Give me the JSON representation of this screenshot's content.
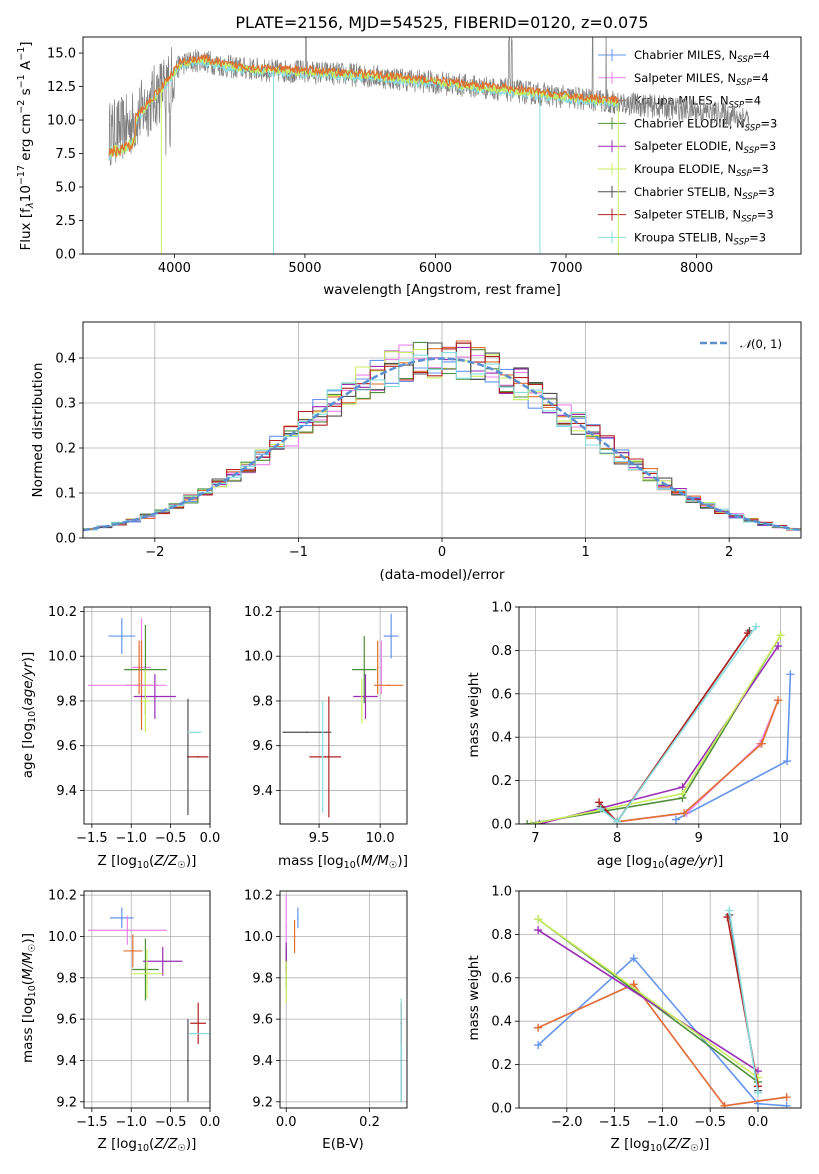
{
  "colors": {
    "series": [
      "#6495ed",
      "#ee82ee",
      "#e07030",
      "#4f8f3a",
      "#9a2db5",
      "#c8ee60",
      "#505050",
      "#b22222",
      "#88dde0"
    ],
    "data_line": "#808080",
    "grid": "#b0b0b0",
    "normal_curve": "#5b8fd0"
  },
  "chart_data": [
    {
      "id": "spectrum",
      "type": "line",
      "title": "PLATE=2156, MJD=54525, FIBERID=0120, z=0.075",
      "xlabel": "wavelength [Angstrom, rest frame]",
      "ylabel": "Flux [f$_\\lambda$10$^{-17}$ erg cm$^{-2}$ s$^{-1}$ A$^{-1}$]",
      "ylabel_parts": {
        "a": "Flux [f",
        "b": "λ",
        "c": "10",
        "d": "−17",
        "e": " erg cm",
        "f": "−2",
        "g": " s",
        "h": "−1",
        "i": " A",
        "j": "−1",
        "k": "]"
      },
      "xlim": [
        3300,
        8800
      ],
      "ylim": [
        0,
        16.2
      ],
      "xticks": [
        4000,
        5000,
        6000,
        7000,
        8000
      ],
      "xtick_labels": [
        "4000",
        "5000",
        "6000",
        "7000",
        "8000"
      ],
      "yticks": [
        0,
        2.5,
        5,
        7.5,
        10,
        12.5,
        15
      ],
      "ytick_labels": [
        "0.0",
        "2.5",
        "5.0",
        "7.5",
        "10.0",
        "12.5",
        "15.0"
      ],
      "grid": false,
      "legend_placement": "upper right",
      "continuum_points": [
        [
          3500,
          9.0
        ],
        [
          3650,
          9.5
        ],
        [
          3900,
          12.3
        ],
        [
          4050,
          14.2
        ],
        [
          4200,
          14.5
        ],
        [
          4400,
          14.0
        ],
        [
          4700,
          13.7
        ],
        [
          5000,
          13.6
        ],
        [
          5500,
          13.3
        ],
        [
          6000,
          12.8
        ],
        [
          6500,
          12.3
        ],
        [
          7000,
          11.7
        ],
        [
          7500,
          11.2
        ],
        [
          8000,
          10.7
        ],
        [
          8400,
          10.2
        ]
      ],
      "series": [
        {
          "name": "Chabrier MILES",
          "nssp": "4"
        },
        {
          "name": "Salpeter MILES",
          "nssp": "4"
        },
        {
          "name": "Kroupa MILES",
          "nssp": "4"
        },
        {
          "name": "Chabrier ELODIE",
          "nssp": "3"
        },
        {
          "name": "Salpeter ELODIE",
          "nssp": "3"
        },
        {
          "name": "Kroupa ELODIE",
          "nssp": "3"
        },
        {
          "name": "Chabrier STELIB",
          "nssp": "3"
        },
        {
          "name": "Salpeter STELIB",
          "nssp": "3"
        },
        {
          "name": "Kroupa STELIB",
          "nssp": "3"
        }
      ],
      "legend_nssp_label": "N",
      "legend_nssp_sub": "SSP"
    },
    {
      "id": "residuals",
      "type": "line",
      "xlabel": "(data-model)/error",
      "ylabel": "Normed distribution",
      "xlim": [
        -2.5,
        2.5
      ],
      "ylim": [
        0,
        0.48
      ],
      "xticks": [
        -2,
        -1,
        0,
        1,
        2
      ],
      "xtick_labels": [
        "−2",
        "−1",
        "0",
        "1",
        "2"
      ],
      "yticks": [
        0,
        0.1,
        0.2,
        0.3,
        0.4
      ],
      "ytick_labels": [
        "0.0",
        "0.1",
        "0.2",
        "0.3",
        "0.4"
      ],
      "grid": true,
      "legend": "$\\mathcal{N}(0,1)$",
      "legend_parts": {
        "a": "𝒩",
        "b": "(0, 1)"
      },
      "legend_placement": "upper right",
      "normal_mean": 0,
      "normal_sigma": 1,
      "bins": {
        "start": -2.5,
        "width": 0.1,
        "count": 50
      }
    },
    {
      "id": "age-vs-Z",
      "type": "scatter",
      "xlabel": "Z [log₁₀(Z/Z☉)]",
      "xlabel_parts": {
        "a": "Z [log",
        "b": "10",
        "c": "(",
        "d": "Z/Z",
        "e": "☉",
        "f": ")]"
      },
      "ylabel_parts": {
        "a": "age  [log",
        "b": "10",
        "c": "(",
        "d": "age/yr",
        "e": ")]"
      },
      "xlim": [
        -1.6,
        0.0
      ],
      "ylim": [
        9.25,
        10.22
      ],
      "xticks": [
        -1.5,
        -1.0,
        -0.5,
        0.0
      ],
      "xtick_labels": [
        "−1.5",
        "−1.0",
        "−0.5",
        "0.0"
      ],
      "yticks": [
        9.4,
        9.6,
        9.8,
        10.0,
        10.2
      ],
      "ytick_labels": [
        "9.4",
        "9.6",
        "9.8",
        "10.0",
        "10.2"
      ],
      "grid": true,
      "points": [
        {
          "s": 0,
          "x": -1.12,
          "y": 10.09,
          "xerr": 0.17,
          "yerr": 0.08
        },
        {
          "s": 1,
          "x": -0.87,
          "y": 9.95,
          "xerr": 0.12,
          "yerr": 0.22
        },
        {
          "s": 2,
          "x": -0.87,
          "y": 9.87,
          "xerr": 0.2,
          "yerr": 0.2
        },
        {
          "s": 3,
          "x": -0.82,
          "y": 9.94,
          "xerr": 0.27,
          "yerr": 0.2
        },
        {
          "s": 4,
          "x": -0.7,
          "y": 9.82,
          "xerr": 0.27,
          "yerr": 0.1
        },
        {
          "s": 5,
          "x": -0.82,
          "y": 9.8,
          "xerr": 0.05,
          "yerr": 0.14
        },
        {
          "s": 6,
          "x": -0.28,
          "y": 9.55,
          "xerr": 0.01,
          "yerr": 0.26
        },
        {
          "s": 7,
          "x": -0.15,
          "y": 9.55,
          "xerr": 0.13,
          "yerr": 0.0
        },
        {
          "s": 8,
          "x": -0.2,
          "y": 9.66,
          "xerr": 0.09,
          "yerr": 0.0
        },
        {
          "s": 1,
          "x": -1.05,
          "y": 9.87,
          "xerr": 0.5,
          "yerr": 0.0
        },
        {
          "s": 2,
          "x": -0.9,
          "y": 9.95,
          "xerr": 0.0,
          "yerr": 0.12
        }
      ]
    },
    {
      "id": "age-vs-mass",
      "type": "scatter",
      "xlabel_parts": {
        "a": "mass [log",
        "b": "10",
        "c": "(",
        "d": "M/M",
        "e": "☉",
        "f": ")]"
      },
      "xlim": [
        9.18,
        10.22
      ],
      "ylim": [
        9.25,
        10.22
      ],
      "xticks": [
        9.5,
        10.0
      ],
      "xtick_labels": [
        "9.5",
        "10.0"
      ],
      "yticks": [
        9.4,
        9.6,
        9.8,
        10.0,
        10.2
      ],
      "ytick_labels": [
        "9.4",
        "9.6",
        "9.8",
        "10.0",
        "10.2"
      ],
      "grid": true,
      "points": [
        {
          "s": 0,
          "x": 10.09,
          "y": 10.09,
          "xerr": 0.06,
          "yerr": 0.1
        },
        {
          "s": 1,
          "x": 10.01,
          "y": 9.95,
          "xerr": 0.0,
          "yerr": 0.12
        },
        {
          "s": 2,
          "x": 9.98,
          "y": 9.95,
          "xerr": 0.0,
          "yerr": 0.12
        },
        {
          "s": 2,
          "x": 10.07,
          "y": 9.87,
          "xerr": 0.12,
          "yerr": 0.0
        },
        {
          "s": 3,
          "x": 9.87,
          "y": 9.94,
          "xerr": 0.1,
          "yerr": 0.15
        },
        {
          "s": 4,
          "x": 9.88,
          "y": 9.82,
          "xerr": 0.1,
          "yerr": 0.1
        },
        {
          "s": 5,
          "x": 9.85,
          "y": 9.8,
          "xerr": 0.0,
          "yerr": 0.1
        },
        {
          "s": 6,
          "x": 9.4,
          "y": 9.66,
          "xerr": 0.2,
          "yerr": 0.0
        },
        {
          "s": 7,
          "x": 9.55,
          "y": 9.55,
          "xerr": 0.13,
          "yerr": 0.0
        },
        {
          "s": 7,
          "x": 9.58,
          "y": 9.55,
          "xerr": 0.0,
          "yerr": 0.27
        },
        {
          "s": 8,
          "x": 9.53,
          "y": 9.55,
          "xerr": 0.0,
          "yerr": 0.25
        }
      ]
    },
    {
      "id": "mass-weight-vs-age",
      "type": "line",
      "xlabel_parts": {
        "a": "age  [log",
        "b": "10",
        "c": "(",
        "d": "age/yr",
        "e": ")]"
      },
      "ylabel": "mass weight",
      "xlim": [
        6.8,
        10.25
      ],
      "ylim": [
        0,
        1
      ],
      "xticks": [
        7,
        8,
        9,
        10
      ],
      "xtick_labels": [
        "7",
        "8",
        "9",
        "10"
      ],
      "yticks": [
        0,
        0.2,
        0.4,
        0.6,
        0.8,
        1.0
      ],
      "ytick_labels": [
        "0.0",
        "0.2",
        "0.4",
        "0.6",
        "0.8",
        "1.0"
      ],
      "grid": true,
      "lines": [
        {
          "s": 0,
          "x": [
            8.72,
            10.08,
            10.12
          ],
          "y": [
            0.02,
            0.29,
            0.69
          ]
        },
        {
          "s": 1,
          "x": [
            8.0,
            8.85,
            9.75,
            9.97
          ],
          "y": [
            0.01,
            0.05,
            0.37,
            0.57
          ]
        },
        {
          "s": 2,
          "x": [
            8.0,
            8.82,
            9.77,
            9.97
          ],
          "y": [
            0.01,
            0.05,
            0.37,
            0.57
          ]
        },
        {
          "s": 3,
          "x": [
            6.9,
            8.8,
            10.0
          ],
          "y": [
            0.0,
            0.12,
            0.87
          ]
        },
        {
          "s": 4,
          "x": [
            7.05,
            8.8,
            9.97
          ],
          "y": [
            0.0,
            0.17,
            0.82
          ]
        },
        {
          "s": 5,
          "x": [
            6.95,
            8.8,
            10.0
          ],
          "y": [
            0.0,
            0.14,
            0.87
          ]
        },
        {
          "s": 6,
          "x": [
            7.8,
            8.0,
            9.62
          ],
          "y": [
            0.08,
            0.01,
            0.89
          ]
        },
        {
          "s": 7,
          "x": [
            7.78,
            8.0,
            9.6
          ],
          "y": [
            0.1,
            0.01,
            0.88
          ]
        },
        {
          "s": 8,
          "x": [
            7.8,
            8.0,
            9.7
          ],
          "y": [
            0.07,
            0.01,
            0.91
          ]
        }
      ]
    },
    {
      "id": "mass-vs-Z",
      "type": "scatter",
      "xlabel_parts": {
        "a": "Z [log",
        "b": "10",
        "c": "(",
        "d": "Z/Z",
        "e": "☉",
        "f": ")]"
      },
      "ylabel_parts": {
        "a": "mass [log",
        "b": "10",
        "c": "(",
        "d": "M/M",
        "e": "☉",
        "f": ")]"
      },
      "xlim": [
        -1.6,
        0.0
      ],
      "ylim": [
        9.17,
        10.22
      ],
      "xticks": [
        -1.5,
        -1.0,
        -0.5,
        0.0
      ],
      "xtick_labels": [
        "−1.5",
        "−1.0",
        "−0.5",
        "0.0"
      ],
      "yticks": [
        9.2,
        9.4,
        9.6,
        9.8,
        10.0,
        10.2
      ],
      "ytick_labels": [
        "9.2",
        "9.4",
        "9.6",
        "9.8",
        "10.0",
        "10.2"
      ],
      "grid": true,
      "points": [
        {
          "s": 0,
          "x": -1.12,
          "y": 10.09,
          "xerr": 0.15,
          "yerr": 0.05
        },
        {
          "s": 1,
          "x": -1.05,
          "y": 10.03,
          "xerr": 0.5,
          "yerr": 0.07
        },
        {
          "s": 2,
          "x": -0.98,
          "y": 9.93,
          "xerr": 0.12,
          "yerr": 0.08
        },
        {
          "s": 3,
          "x": -0.82,
          "y": 9.84,
          "xerr": 0.17,
          "yerr": 0.15
        },
        {
          "s": 4,
          "x": -0.6,
          "y": 9.88,
          "xerr": 0.25,
          "yerr": 0.07
        },
        {
          "s": 5,
          "x": -0.8,
          "y": 9.82,
          "xerr": 0.2,
          "yerr": 0.12
        },
        {
          "s": 6,
          "x": -0.28,
          "y": 9.4,
          "xerr": 0.0,
          "yerr": 0.2
        },
        {
          "s": 7,
          "x": -0.15,
          "y": 9.58,
          "xerr": 0.1,
          "yerr": 0.1
        },
        {
          "s": 8,
          "x": -0.14,
          "y": 9.53,
          "xerr": 0.13,
          "yerr": 0.0
        }
      ]
    },
    {
      "id": "mass-vs-ebv",
      "type": "scatter",
      "xlabel": "E(B-V)",
      "xlim": [
        -0.015,
        0.29
      ],
      "ylim": [
        9.17,
        10.22
      ],
      "xticks": [
        0.0,
        0.2
      ],
      "xtick_labels": [
        "0.0",
        "0.2"
      ],
      "yticks": [
        9.2,
        9.4,
        9.6,
        9.8,
        10.0,
        10.2
      ],
      "ytick_labels": [
        "9.2",
        "9.4",
        "9.6",
        "9.8",
        "10.0",
        "10.2"
      ],
      "grid": true,
      "points": [
        {
          "s": 0,
          "x": 0.028,
          "y": 10.09,
          "xerr": 0.0,
          "yerr": 0.05
        },
        {
          "s": 1,
          "x": 0.0,
          "y": 10.05,
          "xerr": 0.0,
          "yerr": 0.15
        },
        {
          "s": 2,
          "x": 0.02,
          "y": 10.0,
          "xerr": 0.0,
          "yerr": 0.08
        },
        {
          "s": 3,
          "x": 0.0,
          "y": 9.85,
          "xerr": 0.0,
          "yerr": 0.1
        },
        {
          "s": 4,
          "x": 0.0,
          "y": 9.9,
          "xerr": 0.0,
          "yerr": 0.07
        },
        {
          "s": 5,
          "x": 0.0,
          "y": 9.78,
          "xerr": 0.0,
          "yerr": 0.1
        },
        {
          "s": 6,
          "x": 0.276,
          "y": 9.4,
          "xerr": 0.0,
          "yerr": 0.2
        },
        {
          "s": 7,
          "x": 0.276,
          "y": 9.58,
          "xerr": 0.0,
          "yerr": 0.1
        },
        {
          "s": 8,
          "x": 0.276,
          "y": 9.45,
          "xerr": 0.0,
          "yerr": 0.25
        }
      ]
    },
    {
      "id": "mass-weight-vs-Z",
      "type": "line",
      "xlabel_parts": {
        "a": "Z [log",
        "b": "10",
        "c": "(",
        "d": "Z/Z",
        "e": "☉",
        "f": ")]"
      },
      "ylabel": "mass weight",
      "xlim": [
        -2.5,
        0.45
      ],
      "ylim": [
        0,
        1
      ],
      "xticks": [
        -2.0,
        -1.5,
        -1.0,
        -0.5,
        0.0
      ],
      "xtick_labels": [
        "−2.0",
        "−1.5",
        "−1.0",
        "−0.5",
        "0.0"
      ],
      "yticks": [
        0,
        0.2,
        0.4,
        0.6,
        0.8,
        1.0
      ],
      "ytick_labels": [
        "0.0",
        "0.2",
        "0.4",
        "0.6",
        "0.8",
        "1.0"
      ],
      "grid": true,
      "lines": [
        {
          "s": 0,
          "x": [
            -2.3,
            -1.3,
            0.0,
            0.3
          ],
          "y": [
            0.29,
            0.69,
            0.02,
            0.01
          ]
        },
        {
          "s": 1,
          "x": [
            -2.3,
            -1.3,
            -0.35,
            0.3
          ],
          "y": [
            0.37,
            0.57,
            0.01,
            0.05
          ]
        },
        {
          "s": 2,
          "x": [
            -2.3,
            -1.3,
            -0.35,
            0.3
          ],
          "y": [
            0.37,
            0.57,
            0.01,
            0.05
          ]
        },
        {
          "s": 3,
          "x": [
            -2.3,
            0.0
          ],
          "y": [
            0.87,
            0.12
          ]
        },
        {
          "s": 4,
          "x": [
            -2.3,
            0.0
          ],
          "y": [
            0.82,
            0.17
          ]
        },
        {
          "s": 5,
          "x": [
            -2.3,
            0.0
          ],
          "y": [
            0.87,
            0.14
          ]
        },
        {
          "s": 6,
          "x": [
            -0.3,
            0.0
          ],
          "y": [
            0.89,
            0.08
          ]
        },
        {
          "s": 7,
          "x": [
            -0.32,
            0.0
          ],
          "y": [
            0.88,
            0.1
          ]
        },
        {
          "s": 8,
          "x": [
            -0.3,
            0.0
          ],
          "y": [
            0.91,
            0.07
          ]
        }
      ]
    }
  ]
}
